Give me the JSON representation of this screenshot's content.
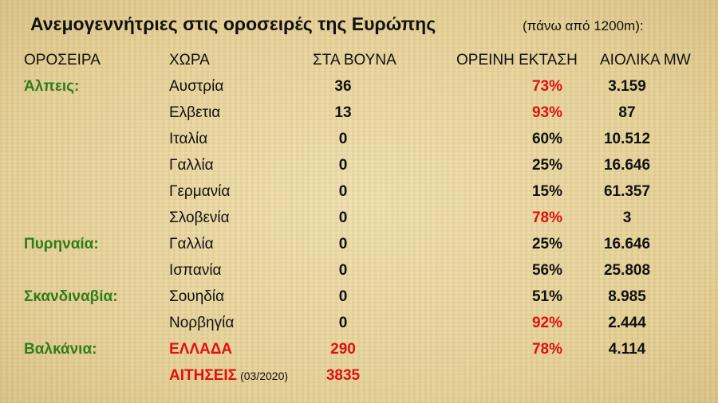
{
  "title": "Ανεμογεννήτριες στις οροσειρές της Ευρώπης",
  "subtitle": "(πάνω από 1200m):",
  "table": {
    "headers": [
      "ΟΡΟΣΕΙΡΑ",
      "ΧΩΡΑ",
      "ΣΤΑ ΒΟΥΝΑ",
      "ΟΡΕΙΝΗ ΕΚΤΑΣΗ",
      "ΑΙΟΛΙΚΑ MW"
    ],
    "rows": [
      [
        "Άλπεις:",
        "Αυστρία",
        "36",
        "73%",
        "3.159"
      ],
      [
        null,
        "Ελβετια",
        "13",
        "93%",
        "87"
      ],
      [
        null,
        "Ιταλία",
        "0",
        "60%",
        "10.512"
      ],
      [
        null,
        "Γαλλία",
        "0",
        "25%",
        "16.646"
      ],
      [
        null,
        "Γερμανία",
        "0",
        "15%",
        "61.357"
      ],
      [
        null,
        "Σλοβενία",
        "0",
        "78%",
        "3"
      ],
      [
        "Πυρηναία:",
        "Γαλλία",
        "0",
        "25%",
        "16.646"
      ],
      [
        null,
        "Ισπανία",
        "0",
        "56%",
        "25.808"
      ],
      [
        "Σκανδιναβία:",
        "Σουηδία",
        "0",
        "51%",
        "8.985"
      ],
      [
        null,
        "Νορβηγία",
        "0",
        "92%",
        "2.444"
      ],
      [
        "Βαλκάνια:",
        "ΕΛΛΑΔΑ",
        "290",
        "78%",
        "4.114"
      ]
    ],
    "footer": {
      "label": "ΑΙΤΗΣΕΙΣ",
      "note": "(03/2020)",
      "value": "3835"
    }
  }
}
